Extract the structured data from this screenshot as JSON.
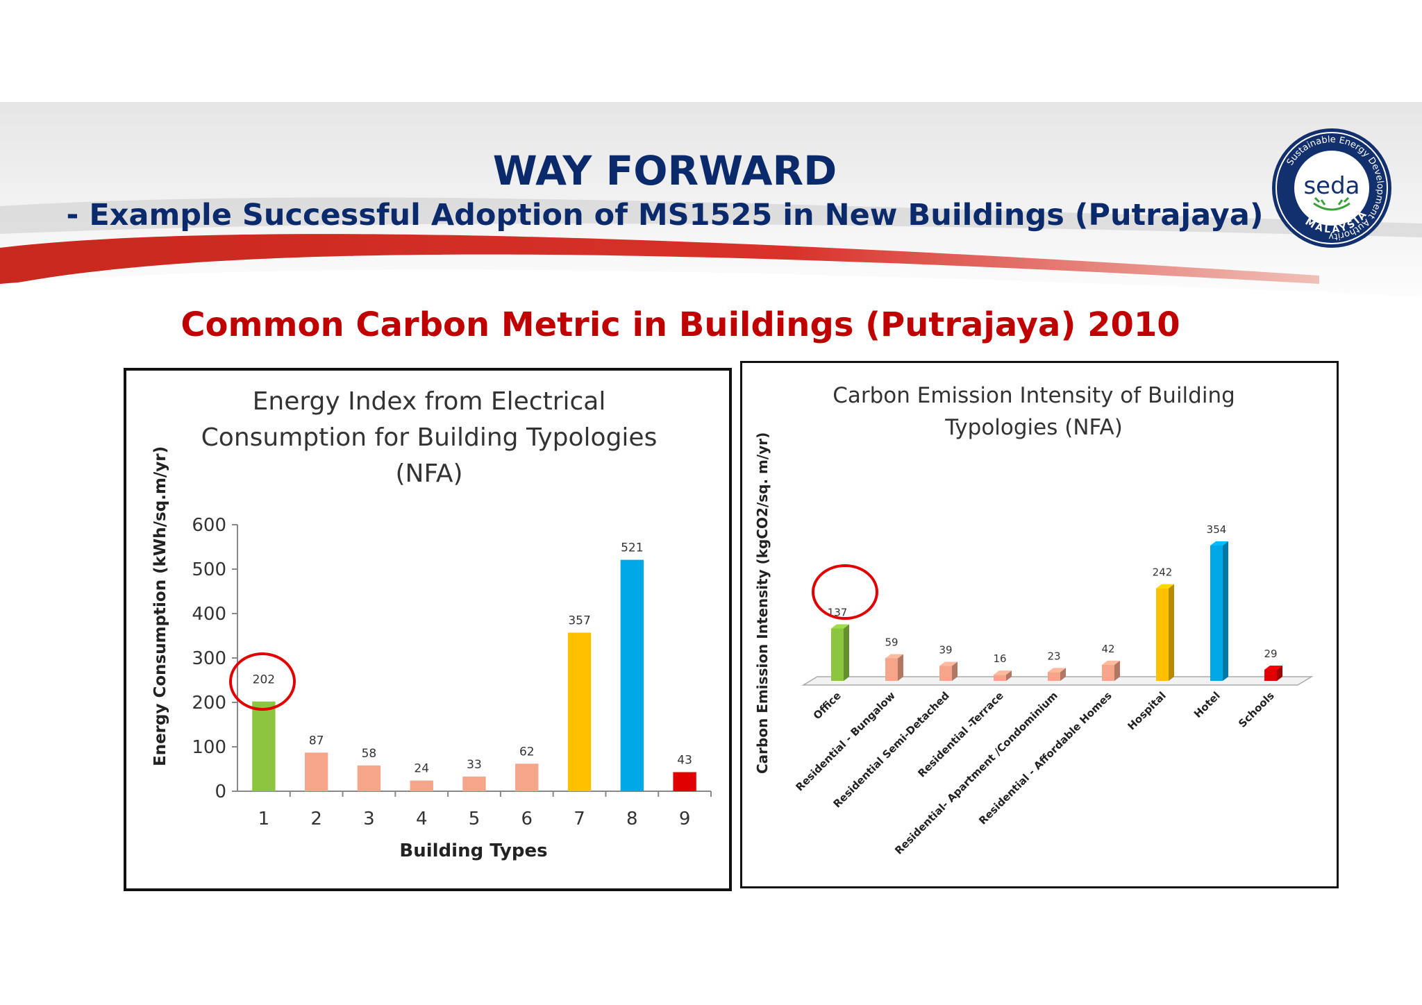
{
  "slide": {
    "title": "WAY FORWARD",
    "subtitle": "- Example Successful Adoption of MS1525 in New Buildings (Putrajaya)",
    "section_title": "Common Carbon Metric in Buildings (Putrajaya) 2010"
  },
  "logo": {
    "ring_text": "Sustainable Energy Development Authority",
    "word": "seda",
    "country": "MALAYSIA"
  },
  "colors": {
    "title_blue": "#0b2a6b",
    "section_red": "#c00000",
    "green": "#8cc63f",
    "salmon": "#f4a58a",
    "yellow": "#ffc000",
    "blue": "#00a8e8",
    "red": "#e00000",
    "highlight_circle": "#e00000"
  },
  "chart_data": [
    {
      "type": "bar",
      "title_lines": [
        "Energy Index from Electrical",
        "Consumption  for Building Typologies",
        "(NFA)"
      ],
      "xlabel": "Building Types",
      "ylabel": "Energy Consumption  (kWh/sq.m/yr)",
      "categories": [
        "1",
        "2",
        "3",
        "4",
        "5",
        "6",
        "7",
        "8",
        "9"
      ],
      "values": [
        202,
        87,
        58,
        24,
        33,
        62,
        357,
        521,
        43
      ],
      "bar_colors": [
        "green",
        "salmon",
        "salmon",
        "salmon",
        "salmon",
        "salmon",
        "yellow",
        "blue",
        "red"
      ],
      "ylim": [
        0,
        600
      ],
      "yticks": [
        0,
        100,
        200,
        300,
        400,
        500,
        600
      ],
      "grid": false,
      "legend": "none",
      "highlighted_index": 0
    },
    {
      "type": "bar",
      "title_lines": [
        "Carbon Emission Intensity of Building",
        "Typologies (NFA)"
      ],
      "xlabel": "",
      "ylabel": "Carbon Emission Intensity  (kgCO2/sq. m/yr)",
      "categories": [
        "Office",
        "Residential - Bungalow",
        "Residential Semi-Detached",
        "Residential -Terrace",
        "Residential- Apartment /Condominium",
        "Residential - Affordable Homes",
        "Hospital",
        "Hotel",
        "Schools"
      ],
      "values": [
        137,
        59,
        39,
        16,
        23,
        42,
        242,
        354,
        29
      ],
      "bar_colors": [
        "green",
        "salmon",
        "salmon",
        "salmon",
        "salmon",
        "salmon",
        "yellow",
        "blue",
        "red"
      ],
      "ylim": [
        0,
        400
      ],
      "grid": false,
      "legend": "none",
      "style": "3d",
      "highlighted_index": 0
    }
  ]
}
